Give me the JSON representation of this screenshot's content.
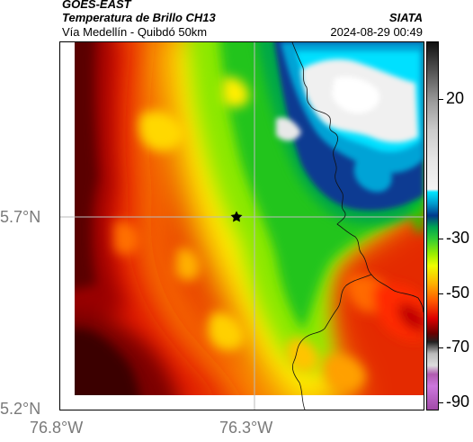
{
  "header": {
    "source": "GOES-EAST",
    "product": "Temperatura de Brillo CH13",
    "region": "Vía Medellín - Quibdó 50km",
    "organization": "SIATA",
    "timestamp": "2024-08-29 00:49"
  },
  "axes": {
    "lat_ticks": [
      "5.7°N",
      "5.2°N"
    ],
    "lon_ticks": [
      "76.8°W",
      "76.3°W"
    ]
  },
  "colorbar": {
    "labels": [
      "20",
      "-30",
      "-50",
      "-70",
      "-90"
    ],
    "stops": [
      {
        "v": 30,
        "c": "#111111"
      },
      {
        "v": 20,
        "c": "#555555"
      },
      {
        "v": 10,
        "c": "#9a9a9a"
      },
      {
        "v": 0,
        "c": "#cccccc"
      },
      {
        "v": -10,
        "c": "#e6e6e6"
      },
      {
        "v": -20,
        "c": "#f4f4f4"
      },
      {
        "v": -21,
        "c": "#00e5ff"
      },
      {
        "v": -25,
        "c": "#0099cc"
      },
      {
        "v": -29,
        "c": "#003a8c"
      },
      {
        "v": -33,
        "c": "#00a650"
      },
      {
        "v": -37,
        "c": "#33cc33"
      },
      {
        "v": -42,
        "c": "#99ee00"
      },
      {
        "v": -46,
        "c": "#eeff00"
      },
      {
        "v": -52,
        "c": "#ffb400"
      },
      {
        "v": -58,
        "c": "#ff5a00"
      },
      {
        "v": -64,
        "c": "#dd0000"
      },
      {
        "v": -69,
        "c": "#6b0000"
      },
      {
        "v": -72,
        "c": "#222222"
      },
      {
        "v": -76,
        "c": "#bbbbbb"
      },
      {
        "v": -80,
        "c": "#dcdcdc"
      },
      {
        "v": -83,
        "c": "#b05bb0"
      },
      {
        "v": -87,
        "c": "#cc77dd"
      },
      {
        "v": -95,
        "c": "#a14aa8"
      }
    ]
  },
  "colors": {
    "background_outside_data": "#ffffff",
    "grid_lines": "#bbbbbb",
    "borders": "#000000",
    "tick_text": "#7a7a7a"
  },
  "markers": [
    {
      "name": "Medellín-Quibdó road point",
      "symbol": "star"
    }
  ]
}
